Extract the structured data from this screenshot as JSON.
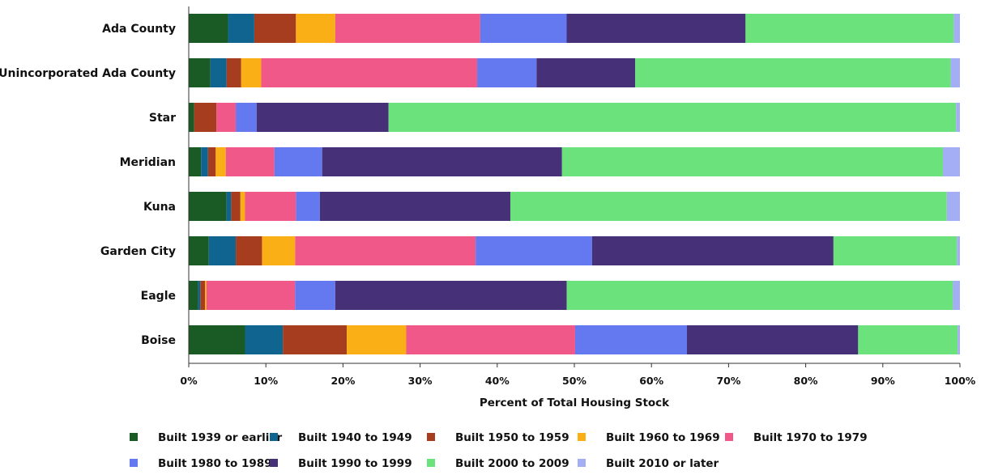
{
  "chart_data": {
    "type": "bar",
    "orientation": "horizontal",
    "stacked": true,
    "xlabel": "Percent of Total Housing Stock",
    "xlim": [
      0,
      100
    ],
    "x_ticks": [
      0,
      10,
      20,
      30,
      40,
      50,
      60,
      70,
      80,
      90,
      100
    ],
    "x_tick_labels": [
      "0%",
      "10%",
      "20%",
      "30%",
      "40%",
      "50%",
      "60%",
      "70%",
      "80%",
      "90%",
      "100%"
    ],
    "categories": [
      "Ada County",
      "Unincorporated Ada County",
      "Star",
      "Meridian",
      "Kuna",
      "Garden City",
      "Eagle",
      "Boise"
    ],
    "grid": false,
    "legend_position": "bottom",
    "series": [
      {
        "name": "Built 1939 or earlier",
        "color": "#1a5a24",
        "values": [
          5.1,
          2.8,
          0.7,
          1.6,
          4.9,
          2.6,
          1.2,
          7.3
        ]
      },
      {
        "name": "Built 1940 to 1949",
        "color": "#0f6590",
        "values": [
          3.4,
          2.1,
          0.0,
          0.9,
          0.6,
          3.5,
          0.3,
          4.9
        ]
      },
      {
        "name": "Built 1950 to 1959",
        "color": "#a53d1e",
        "values": [
          5.4,
          1.9,
          2.9,
          1.0,
          1.2,
          3.4,
          0.6,
          8.3
        ]
      },
      {
        "name": "Built 1960 to 1969",
        "color": "#fbaf17",
        "values": [
          5.1,
          2.6,
          0.0,
          1.3,
          0.6,
          4.3,
          0.2,
          7.7
        ]
      },
      {
        "name": "Built 1970 to 1979",
        "color": "#ef5888",
        "values": [
          18.8,
          28.0,
          2.5,
          6.3,
          6.6,
          23.4,
          11.5,
          21.9
        ]
      },
      {
        "name": "Built 1980 to 1989",
        "color": "#6479f0",
        "values": [
          11.2,
          7.7,
          2.7,
          6.2,
          3.1,
          15.1,
          5.2,
          14.5
        ]
      },
      {
        "name": "Built 1990 to 1999",
        "color": "#463077",
        "values": [
          23.2,
          12.8,
          17.1,
          31.1,
          24.7,
          31.3,
          30.0,
          22.2
        ]
      },
      {
        "name": "Built 2000 to 2009",
        "color": "#6be27c",
        "values": [
          27.0,
          40.9,
          73.6,
          49.4,
          56.6,
          16.0,
          50.1,
          12.9
        ]
      },
      {
        "name": "Built 2010 or later",
        "color": "#a3aef5",
        "values": [
          0.8,
          1.2,
          0.5,
          2.2,
          1.7,
          0.4,
          0.9,
          0.3
        ]
      }
    ]
  }
}
